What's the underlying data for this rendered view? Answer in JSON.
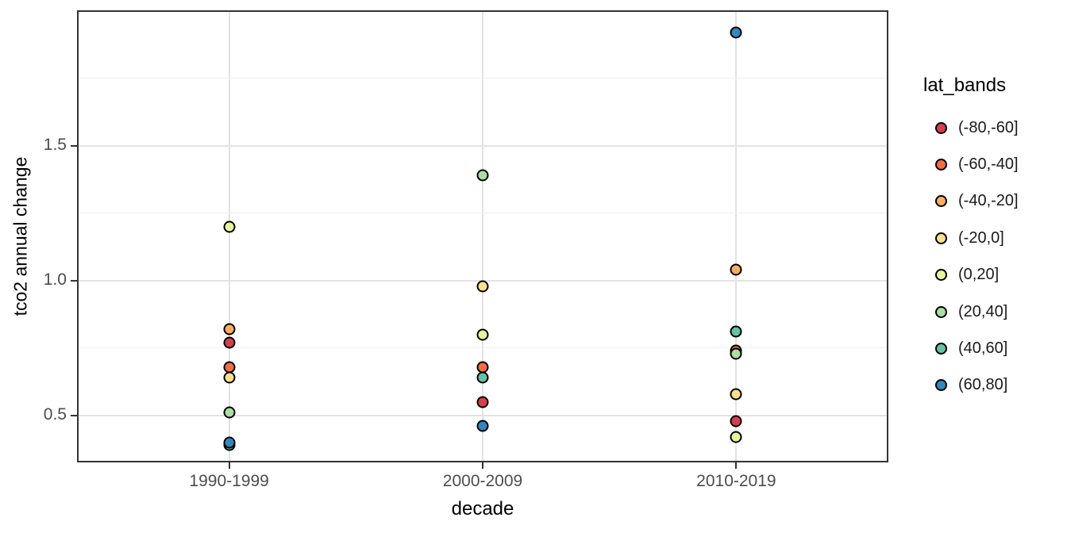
{
  "chart_data": {
    "type": "scatter",
    "title": "",
    "xlabel": "decade",
    "ylabel": "tco2 annual change",
    "x_categories": [
      "1990-1999",
      "2000-2009",
      "2010-2019"
    ],
    "y_tick_labels": [
      "0.5",
      "1.0",
      "1.5"
    ],
    "y_tick_values": [
      0.5,
      1.0,
      1.5
    ],
    "ylim": [
      0.326,
      2.003
    ],
    "grid": {
      "major_y": [
        0.5,
        1.0,
        1.5
      ],
      "minor_y": [
        0.75,
        1.25,
        1.75
      ],
      "vertical_at_categories": true
    },
    "legend": {
      "title": "lat_bands",
      "position": "right"
    },
    "point_style": {
      "shape": "circle-filled-outlined",
      "stroke": "#000000"
    },
    "series": [
      {
        "name": "(-80,-60]",
        "color": "#d53e4f",
        "points": [
          {
            "decade": "1990-1999",
            "value": 0.77
          },
          {
            "decade": "2000-2009",
            "value": 0.55
          },
          {
            "decade": "2010-2019",
            "value": 0.48
          }
        ]
      },
      {
        "name": "(-60,-40]",
        "color": "#f46d43",
        "points": [
          {
            "decade": "1990-1999",
            "value": 0.68
          },
          {
            "decade": "2000-2009",
            "value": 0.68
          },
          {
            "decade": "2010-2019",
            "value": 0.74
          }
        ]
      },
      {
        "name": "(-40,-20]",
        "color": "#fdae61",
        "points": [
          {
            "decade": "1990-1999",
            "value": 0.82
          },
          {
            "decade": "2010-2019",
            "value": 1.04
          }
        ]
      },
      {
        "name": "(-20,0]",
        "color": "#fee08b",
        "points": [
          {
            "decade": "1990-1999",
            "value": 0.64
          },
          {
            "decade": "2000-2009",
            "value": 0.98
          },
          {
            "decade": "2010-2019",
            "value": 0.58
          }
        ]
      },
      {
        "name": "(0,20]",
        "color": "#e6f598",
        "points": [
          {
            "decade": "1990-1999",
            "value": 1.2
          },
          {
            "decade": "2000-2009",
            "value": 0.8
          },
          {
            "decade": "2010-2019",
            "value": 0.42
          }
        ]
      },
      {
        "name": "(20,40]",
        "color": "#abdda4",
        "points": [
          {
            "decade": "1990-1999",
            "value": 0.51
          },
          {
            "decade": "2000-2009",
            "value": 1.39
          },
          {
            "decade": "2010-2019",
            "value": 0.73
          }
        ]
      },
      {
        "name": "(40,60]",
        "color": "#66c2a5",
        "points": [
          {
            "decade": "1990-1999",
            "value": 0.39
          },
          {
            "decade": "2000-2009",
            "value": 0.64
          },
          {
            "decade": "2010-2019",
            "value": 0.81
          }
        ]
      },
      {
        "name": "(60,80]",
        "color": "#3288bd",
        "points": [
          {
            "decade": "1990-1999",
            "value": 0.4
          },
          {
            "decade": "2000-2009",
            "value": 0.46
          },
          {
            "decade": "2010-2019",
            "value": 1.92
          }
        ]
      }
    ]
  }
}
